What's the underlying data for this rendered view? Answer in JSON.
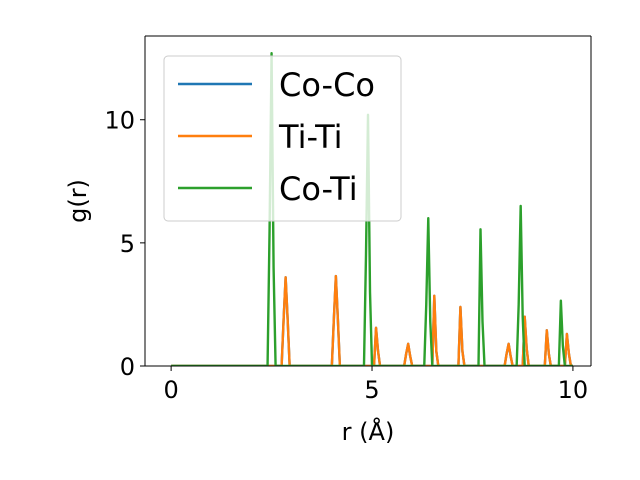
{
  "chart_data": {
    "type": "line",
    "title": "",
    "xlabel": "r (Å)",
    "ylabel": "g(r)",
    "xlim": [
      -0.65,
      10.45
    ],
    "ylim": [
      0,
      13.4
    ],
    "xticks": [
      0,
      5,
      10
    ],
    "yticks": [
      0,
      5,
      10
    ],
    "grid": false,
    "legend_position": "upper-left",
    "series": [
      {
        "name": "Co-Co",
        "color": "#1f77b4",
        "x": [
          0,
          2.75,
          2.8,
          2.85,
          2.9,
          2.95,
          3.0,
          4.0,
          4.05,
          4.1,
          4.15,
          4.2,
          4.25,
          5.05,
          5.1,
          5.15,
          5.2,
          5.8,
          5.85,
          5.9,
          5.95,
          6.0,
          6.5,
          6.55,
          6.6,
          6.65,
          7.15,
          7.2,
          7.25,
          7.3,
          8.3,
          8.35,
          8.4,
          8.45,
          8.5,
          8.75,
          8.8,
          8.85,
          8.9,
          9.3,
          9.35,
          9.4,
          9.45,
          9.8,
          9.85,
          9.9,
          9.95,
          10.0
        ],
        "y": [
          0,
          0,
          1.9,
          3.6,
          1.9,
          0,
          0,
          0,
          1.9,
          3.65,
          1.9,
          0,
          0,
          0,
          1.55,
          0.6,
          0,
          0,
          0.5,
          0.9,
          0.4,
          0,
          0,
          2.85,
          0.6,
          0,
          0,
          2.4,
          0.6,
          0,
          0,
          0.5,
          0.9,
          0.4,
          0,
          0,
          2.0,
          0.7,
          0,
          0,
          1.45,
          0.5,
          0,
          0,
          1.3,
          0.5,
          0,
          0
        ]
      },
      {
        "name": "Ti-Ti",
        "color": "#ff7f0e",
        "x": [
          0,
          2.75,
          2.8,
          2.85,
          2.9,
          2.95,
          3.0,
          4.0,
          4.05,
          4.1,
          4.15,
          4.2,
          4.25,
          5.05,
          5.1,
          5.15,
          5.2,
          5.8,
          5.85,
          5.9,
          5.95,
          6.0,
          6.5,
          6.55,
          6.6,
          6.65,
          7.15,
          7.2,
          7.25,
          7.3,
          8.3,
          8.35,
          8.4,
          8.45,
          8.5,
          8.75,
          8.8,
          8.85,
          8.9,
          9.3,
          9.35,
          9.4,
          9.45,
          9.8,
          9.85,
          9.9,
          9.95,
          10.0
        ],
        "y": [
          0,
          0,
          1.9,
          3.6,
          1.9,
          0,
          0,
          0,
          1.9,
          3.65,
          1.9,
          0,
          0,
          0,
          1.55,
          0.6,
          0,
          0,
          0.5,
          0.9,
          0.4,
          0,
          0,
          2.85,
          0.6,
          0,
          0,
          2.4,
          0.6,
          0,
          0,
          0.5,
          0.9,
          0.4,
          0,
          0,
          2.0,
          0.7,
          0,
          0,
          1.45,
          0.5,
          0,
          0,
          1.3,
          0.5,
          0,
          0
        ]
      },
      {
        "name": "Co-Ti",
        "color": "#2ca02c",
        "x": [
          0,
          2.4,
          2.45,
          2.5,
          2.55,
          2.6,
          4.8,
          4.85,
          4.9,
          4.95,
          5.0,
          6.3,
          6.35,
          6.4,
          6.45,
          6.5,
          7.65,
          7.7,
          7.75,
          7.8,
          8.6,
          8.65,
          8.7,
          8.75,
          8.8,
          9.65,
          9.7,
          9.75,
          9.8,
          10.0
        ],
        "y": [
          0,
          0,
          5.5,
          12.7,
          4.0,
          0,
          0,
          4.5,
          10.2,
          3.0,
          0,
          0,
          2.5,
          6.0,
          1.8,
          0,
          0,
          5.55,
          1.8,
          0,
          0,
          2.5,
          6.5,
          2.0,
          0,
          0,
          2.65,
          0.8,
          0,
          0
        ]
      }
    ]
  }
}
